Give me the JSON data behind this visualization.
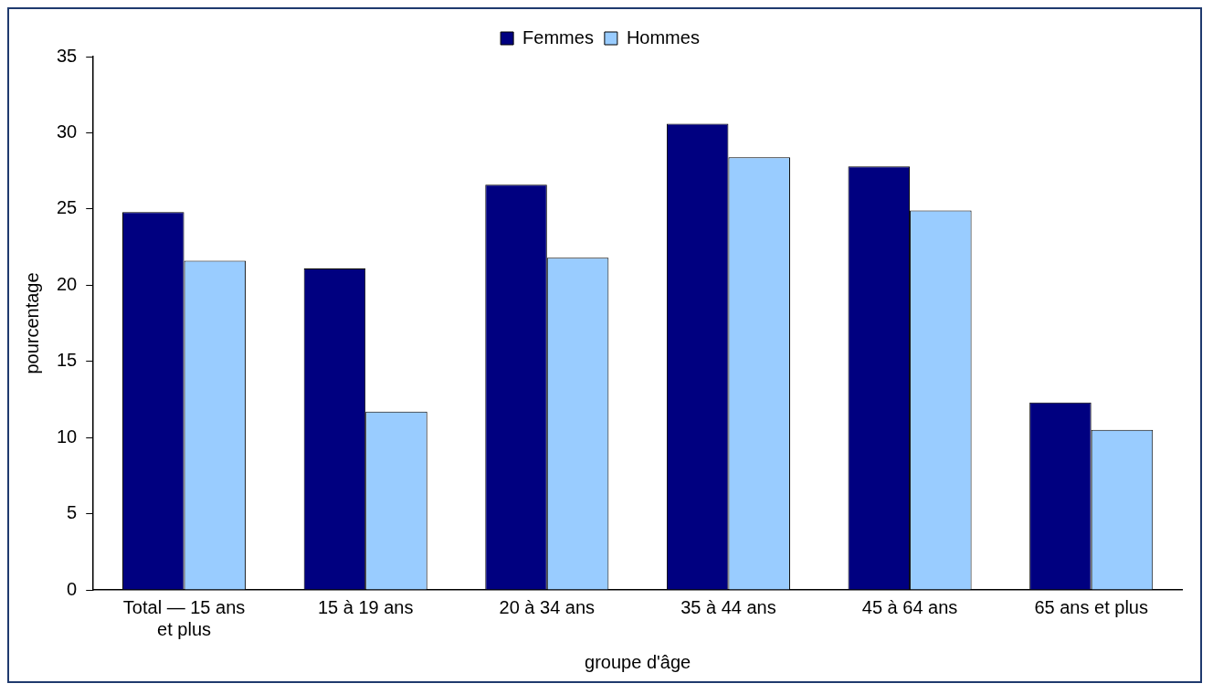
{
  "chart_data": {
    "type": "bar",
    "xlabel": "groupe d'âge",
    "ylabel": "pourcentage",
    "categories": [
      "Total — 15 ans et plus",
      "15 à 19 ans",
      "20 à 34 ans",
      "35 à 44 ans",
      "45 à 64 ans",
      "65 ans et plus"
    ],
    "series": [
      {
        "name": "Femmes",
        "color": "#000080",
        "values": [
          24.8,
          21.1,
          26.6,
          30.6,
          27.8,
          12.3
        ]
      },
      {
        "name": "Hommes",
        "color": "#99ccff",
        "values": [
          21.6,
          11.7,
          21.8,
          28.4,
          24.9,
          10.5
        ]
      }
    ],
    "ylim": [
      0,
      35
    ],
    "yticks": [
      0,
      5,
      10,
      15,
      20,
      25,
      30,
      35
    ],
    "grid": false,
    "legend": "top"
  }
}
